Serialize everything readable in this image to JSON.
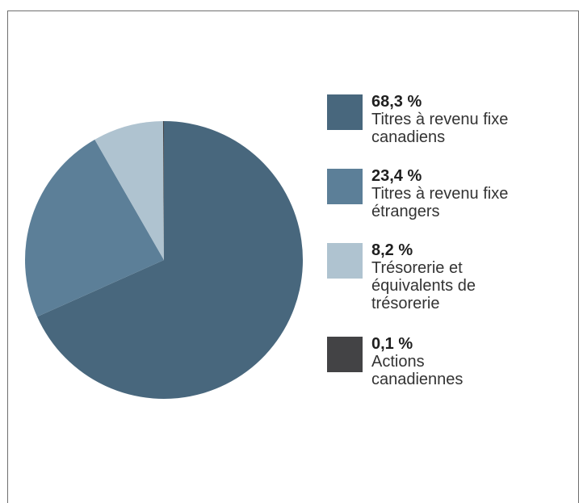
{
  "chart_data": {
    "type": "pie",
    "colors": [
      "#48677d",
      "#5c7f98",
      "#afc3d0",
      "#434345"
    ],
    "slices": [
      {
        "value": 68.3,
        "pct_label": "68,3 %",
        "label": "Titres à revenu fixe\ncanadiens"
      },
      {
        "value": 23.4,
        "pct_label": "23,4 %",
        "label": "Titres à revenu fixe\nétrangers"
      },
      {
        "value": 8.2,
        "pct_label": "8,2 %",
        "label": "Trésorerie et\néquivalents de\ntrésorerie"
      },
      {
        "value": 0.1,
        "pct_label": "0,1 %",
        "label": "Actions\ncanadiennes"
      }
    ]
  }
}
